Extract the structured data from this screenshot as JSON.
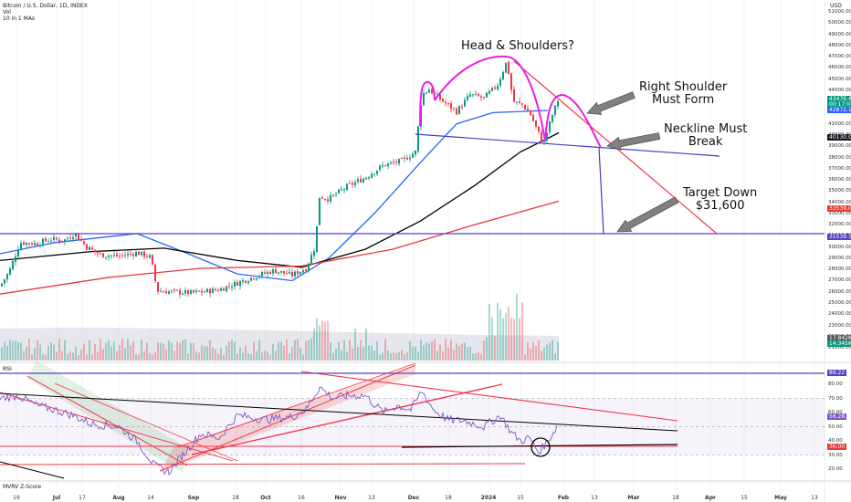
{
  "header": {
    "symbol": "Bitcoin / U.S. Dollar, 1D, INDEX",
    "vol": "Vol",
    "ma": "10 in 1 MAs"
  },
  "currency": "USD",
  "annotations": {
    "hs": "Head & Shoulders?",
    "rs": "Right Shoulder\nMust Form",
    "neck": "Neckline Must\nBreak",
    "target": "Target Down\n$31,600"
  },
  "colors": {
    "up": "#089981",
    "down": "#f23645",
    "ma50": "#2962ff",
    "ma100": "#000000",
    "ma200": "#e53935",
    "magenta": "#e91ee8",
    "neckline": "#3f3fc4",
    "hline": "#5b3fc4",
    "resist": "#e0313f",
    "arrow": "#808080"
  },
  "price_axis": {
    "labels": [
      "51000.00",
      "50000.00",
      "49000.00",
      "48000.00",
      "47000.00",
      "46000.00",
      "45000.00",
      "44000.00",
      "43000.00",
      "42000.00",
      "41000.00",
      "40000.00",
      "39000.00",
      "38000.00",
      "37000.00",
      "36000.00",
      "35000.00",
      "34000.00",
      "33000.00",
      "32000.00",
      "31000.00",
      "30000.00",
      "29000.00",
      "28000.00",
      "27000.00",
      "26000.00",
      "25000.00",
      "24000.00",
      "23000.00",
      "22000.00",
      "21000.00"
    ],
    "current_labels": [
      "43476.43",
      "00:17:07",
      "42872.16",
      "40130.01",
      "33539.05",
      "31539.32",
      "17.842K",
      "14.345K"
    ]
  },
  "rsi_axis": {
    "labels": [
      "80.00",
      "70.00",
      "60.00",
      "50.00",
      "40.00",
      "30.00",
      "20.00"
    ],
    "current_labels": [
      "89.22",
      "56.28",
      "36.00"
    ]
  },
  "time_axis": [
    "19",
    "Jul",
    "17",
    "Aug",
    "14",
    "Sep",
    "18",
    "Oct",
    "16",
    "Nov",
    "13",
    "Dec",
    "18",
    "2024",
    "15",
    "Feb",
    "13",
    "Mar",
    "18",
    "Apr",
    "15",
    "May",
    "13"
  ],
  "panes": {
    "rsi": "RSI",
    "mvrv": "MVRV Z-Score"
  },
  "chart_data": {
    "type": "candlestick",
    "title": "Bitcoin / U.S. Dollar, 1D, INDEX",
    "ylim": [
      20000,
      52000
    ],
    "key_levels": {
      "target": 31600,
      "neckline_left": 40400,
      "neckline_right": 38300
    },
    "series": [
      {
        "name": "50 MA",
        "values": [
          [
            0,
            29400
          ],
          [
            60,
            30400
          ],
          [
            150,
            31200
          ],
          [
            200,
            29600
          ],
          [
            260,
            27600
          ],
          [
            320,
            27000
          ],
          [
            360,
            29000
          ],
          [
            410,
            33000
          ],
          [
            460,
            37500
          ],
          [
            500,
            41000
          ],
          [
            540,
            42000
          ],
          [
            600,
            42200
          ]
        ]
      },
      {
        "name": "100 MA",
        "values": [
          [
            0,
            28800
          ],
          [
            100,
            29600
          ],
          [
            180,
            29900
          ],
          [
            260,
            28800
          ],
          [
            330,
            28200
          ],
          [
            400,
            29800
          ],
          [
            460,
            32300
          ],
          [
            520,
            35500
          ],
          [
            570,
            38500
          ],
          [
            612,
            40200
          ]
        ]
      },
      {
        "name": "200 MA",
        "values": [
          [
            0,
            25800
          ],
          [
            120,
            27300
          ],
          [
            220,
            28100
          ],
          [
            330,
            28300
          ],
          [
            430,
            29800
          ],
          [
            520,
            32000
          ],
          [
            612,
            34100
          ]
        ]
      }
    ],
    "rsi_levels": [
      70,
      50,
      30
    ]
  }
}
